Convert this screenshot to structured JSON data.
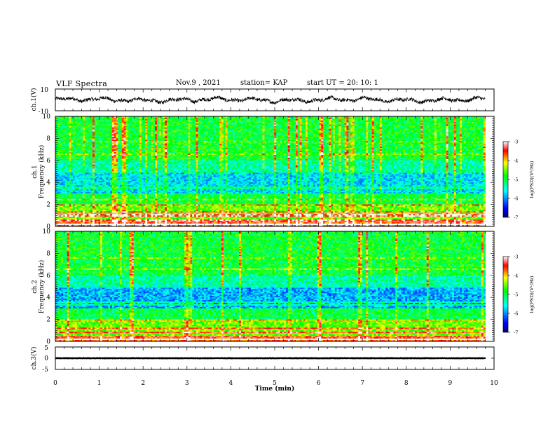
{
  "header": {
    "title": "VLF Spectra",
    "date": "Nov.9 , 2021",
    "station": "station= KAP",
    "start": "start UT = 20: 10: 1"
  },
  "chart_data": [
    {
      "type": "line",
      "panel": "ch1-waveform",
      "ylabel": "ch.1(V)",
      "ylim": [
        -10,
        10
      ],
      "yticks": [
        "10",
        "-10"
      ],
      "xlim": [
        0,
        10
      ],
      "series": [
        {
          "y_range_approx": [
            -4,
            5
          ]
        }
      ]
    },
    {
      "type": "heatmap",
      "panel": "ch1-spectrogram",
      "ylabel": "ch.1\nFrequency (kHz)",
      "ylim": [
        0,
        10
      ],
      "yticks": [
        "0",
        "2",
        "4",
        "6",
        "8",
        "10"
      ],
      "xlim": [
        0,
        9.8
      ],
      "colorbar": {
        "label": "log(PSD)(V²/Hz)",
        "range": [
          -7,
          -3
        ],
        "ticks": [
          "-3",
          "-4",
          "-5",
          "-6",
          "-7"
        ]
      }
    },
    {
      "type": "heatmap",
      "panel": "ch2-spectrogram",
      "ylabel": "ch.2\nFrequency (kHz)",
      "ylim": [
        0,
        10
      ],
      "yticks": [
        "0",
        "2",
        "4",
        "6",
        "8",
        "10"
      ],
      "xlim": [
        0,
        9.8
      ],
      "colorbar": {
        "label": "log(PSD)(V²/Hz)",
        "range": [
          -7,
          -3
        ],
        "ticks": [
          "-3",
          "-4",
          "-5",
          "-6",
          "-7"
        ]
      }
    },
    {
      "type": "line",
      "panel": "ch3-waveform",
      "ylabel": "ch.3(V)",
      "ylim": [
        -5,
        5
      ],
      "yticks": [
        "5",
        "0",
        "-5"
      ],
      "xlim": [
        0,
        10
      ],
      "series": [
        {
          "y_range_approx": [
            -0.5,
            0.5
          ]
        }
      ]
    }
  ],
  "xaxis": {
    "label": "Time (min)",
    "ticks": [
      "0",
      "1",
      "2",
      "3",
      "4",
      "5",
      "6",
      "7",
      "8",
      "9",
      "10"
    ]
  },
  "colors": {
    "background": "#ffffff",
    "axes": "#000000",
    "colormap": [
      "#0000a0",
      "#0000ff",
      "#00ffff",
      "#00ff00",
      "#ffff00",
      "#ff0000",
      "#ffffff"
    ]
  }
}
